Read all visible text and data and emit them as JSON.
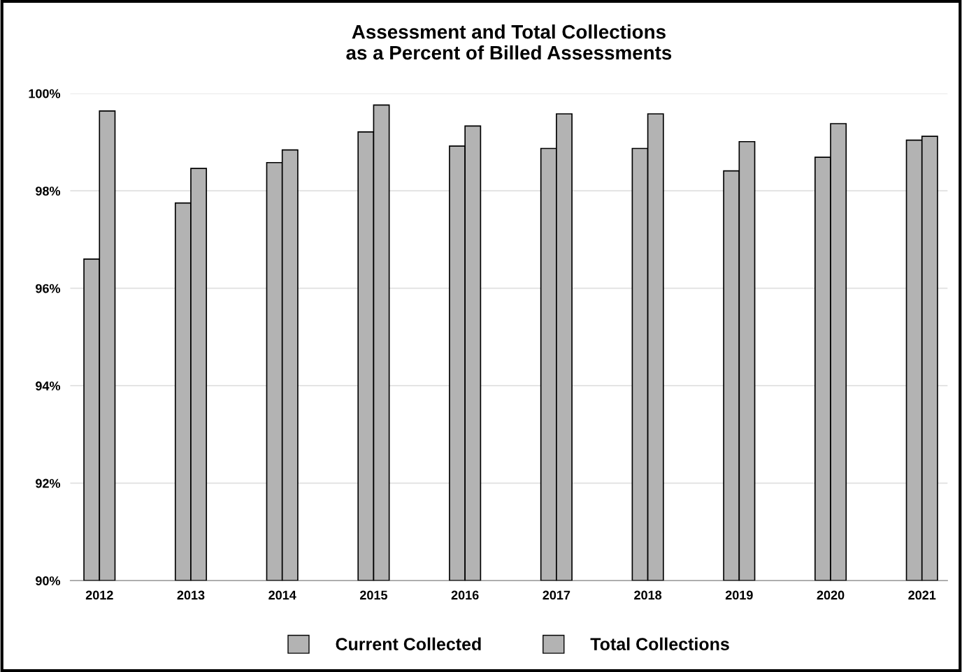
{
  "chart_data": {
    "type": "bar",
    "title": "Assessment and Total Collections\nas a Percent of Billed Assessments",
    "categories": [
      "2012",
      "2013",
      "2014",
      "2015",
      "2016",
      "2017",
      "2018",
      "2019",
      "2020",
      "2021"
    ],
    "series": [
      {
        "name": "Current Collected",
        "color": "#b3b3b3",
        "values": [
          96.6,
          97.75,
          98.58,
          99.21,
          98.92,
          98.87,
          98.87,
          98.41,
          98.69,
          99.04
        ]
      },
      {
        "name": "Total Collections",
        "color": "#b3b3b3",
        "values": [
          99.64,
          98.46,
          98.84,
          99.76,
          99.33,
          99.58,
          99.58,
          99.01,
          99.38,
          99.12
        ]
      }
    ],
    "ylim": [
      90,
      100
    ],
    "yticks": [
      {
        "value": 90,
        "label": "90%"
      },
      {
        "value": 92,
        "label": "92%"
      },
      {
        "value": 94,
        "label": "94%"
      },
      {
        "value": 96,
        "label": "96%"
      },
      {
        "value": 98,
        "label": "98%"
      },
      {
        "value": 100,
        "label": "100%"
      }
    ],
    "grid": "y",
    "legend": "bottom"
  }
}
